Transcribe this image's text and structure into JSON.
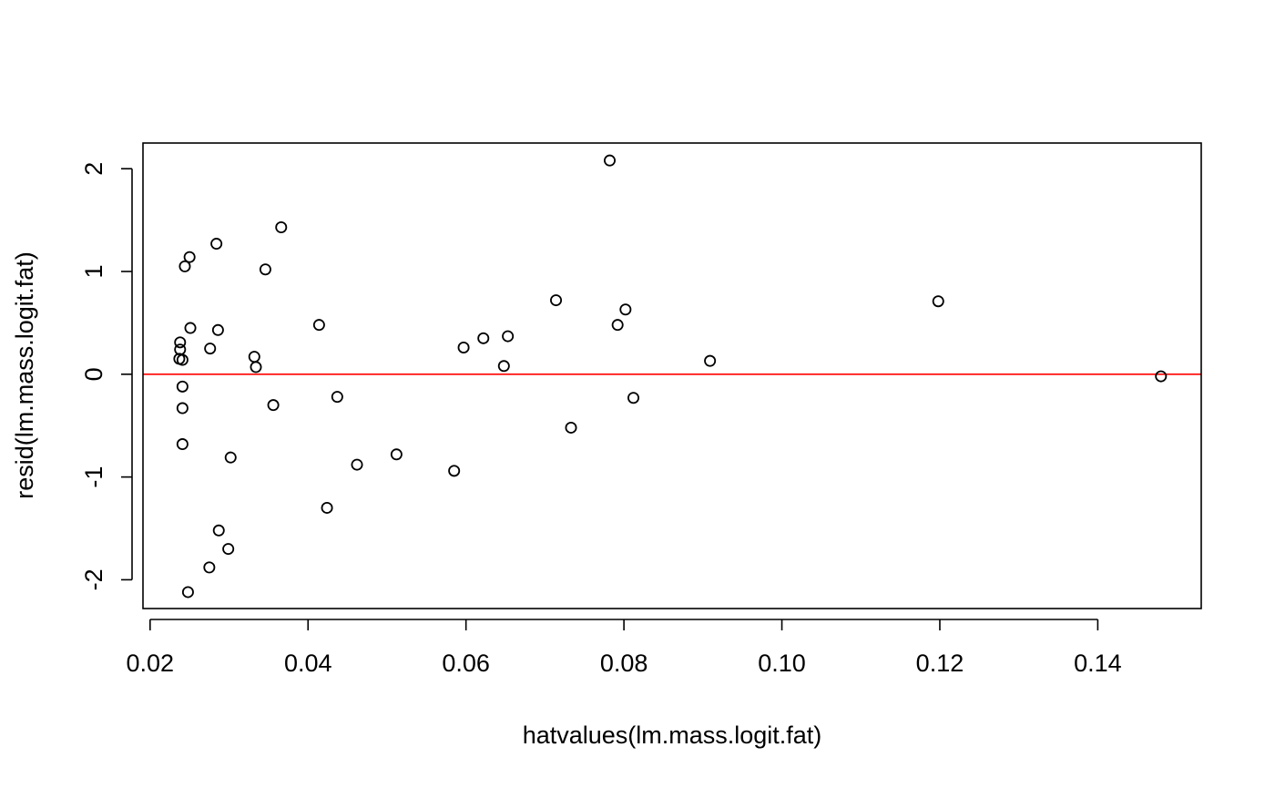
{
  "chart_data": {
    "type": "scatter",
    "title": "",
    "xlabel": "hatvalues(lm.mass.logit.fat)",
    "ylabel": "resid(lm.mass.logit.fat)",
    "xlim": [
      0.0191,
      0.1531
    ],
    "ylim": [
      -2.28,
      2.25
    ],
    "x_ticks": [
      0.02,
      0.04,
      0.06,
      0.08,
      0.1,
      0.12,
      0.14
    ],
    "x_tick_labels": [
      "0.02",
      "0.04",
      "0.06",
      "0.08",
      "0.10",
      "0.12",
      "0.14"
    ],
    "y_ticks": [
      -2,
      -1,
      0,
      1,
      2
    ],
    "y_tick_labels": [
      "-2",
      "-1",
      "0",
      "1",
      "2"
    ],
    "reference_line": {
      "orientation": "horizontal",
      "y": 0,
      "color": "#ff0000"
    },
    "marker": {
      "shape": "open-circle",
      "color": "#000000"
    },
    "grid": false,
    "legend": "none",
    "points": [
      {
        "x": 0.0782,
        "y": 2.08
      },
      {
        "x": 0.0366,
        "y": 1.43
      },
      {
        "x": 0.0284,
        "y": 1.27
      },
      {
        "x": 0.025,
        "y": 1.14
      },
      {
        "x": 0.0244,
        "y": 1.05
      },
      {
        "x": 0.0346,
        "y": 1.02
      },
      {
        "x": 0.0714,
        "y": 0.72
      },
      {
        "x": 0.1198,
        "y": 0.71
      },
      {
        "x": 0.0802,
        "y": 0.63
      },
      {
        "x": 0.0414,
        "y": 0.48
      },
      {
        "x": 0.0792,
        "y": 0.48
      },
      {
        "x": 0.0251,
        "y": 0.45
      },
      {
        "x": 0.0286,
        "y": 0.43
      },
      {
        "x": 0.0653,
        "y": 0.37
      },
      {
        "x": 0.0622,
        "y": 0.35
      },
      {
        "x": 0.0238,
        "y": 0.31
      },
      {
        "x": 0.0597,
        "y": 0.26
      },
      {
        "x": 0.0276,
        "y": 0.25
      },
      {
        "x": 0.0238,
        "y": 0.24
      },
      {
        "x": 0.0332,
        "y": 0.17
      },
      {
        "x": 0.0237,
        "y": 0.15
      },
      {
        "x": 0.0241,
        "y": 0.14
      },
      {
        "x": 0.0909,
        "y": 0.13
      },
      {
        "x": 0.0648,
        "y": 0.08
      },
      {
        "x": 0.0334,
        "y": 0.07
      },
      {
        "x": 0.148,
        "y": -0.02
      },
      {
        "x": 0.0241,
        "y": -0.12
      },
      {
        "x": 0.0437,
        "y": -0.22
      },
      {
        "x": 0.0812,
        "y": -0.23
      },
      {
        "x": 0.0356,
        "y": -0.3
      },
      {
        "x": 0.0241,
        "y": -0.33
      },
      {
        "x": 0.0733,
        "y": -0.52
      },
      {
        "x": 0.0241,
        "y": -0.68
      },
      {
        "x": 0.0512,
        "y": -0.78
      },
      {
        "x": 0.0302,
        "y": -0.81
      },
      {
        "x": 0.0462,
        "y": -0.88
      },
      {
        "x": 0.0585,
        "y": -0.94
      },
      {
        "x": 0.0424,
        "y": -1.3
      },
      {
        "x": 0.0287,
        "y": -1.52
      },
      {
        "x": 0.0299,
        "y": -1.7
      },
      {
        "x": 0.0275,
        "y": -1.88
      },
      {
        "x": 0.0248,
        "y": -2.12
      }
    ]
  }
}
